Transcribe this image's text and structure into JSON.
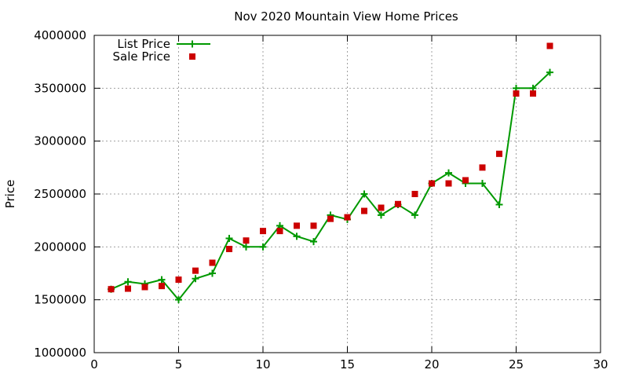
{
  "chart_data": {
    "type": "line",
    "title": "Nov 2020 Mountain View Home Prices",
    "xlabel": "",
    "ylabel": "Price",
    "xlim": [
      0,
      30
    ],
    "ylim": [
      1000000,
      4000000
    ],
    "xticks": [
      0,
      5,
      10,
      15,
      20,
      25,
      30
    ],
    "yticks": [
      1000000,
      1500000,
      2000000,
      2500000,
      3000000,
      3500000,
      4000000
    ],
    "grid": true,
    "legend_position": "top-left",
    "series": [
      {
        "name": "List Price",
        "style": "line+cross",
        "color": "#009900",
        "x": [
          1,
          2,
          3,
          4,
          5,
          6,
          7,
          8,
          9,
          10,
          11,
          12,
          13,
          14,
          15,
          16,
          17,
          18,
          19,
          20,
          21,
          22,
          23,
          24,
          25,
          26,
          27
        ],
        "y": [
          1600000,
          1670000,
          1650000,
          1690000,
          1500000,
          1700000,
          1750000,
          2080000,
          2000000,
          2000000,
          2200000,
          2100000,
          2050000,
          2300000,
          2260000,
          2500000,
          2300000,
          2400000,
          2300000,
          2600000,
          2700000,
          2600000,
          2600000,
          2400000,
          3500000,
          3500000,
          3650000
        ]
      },
      {
        "name": "Sale Price",
        "style": "square",
        "color": "#cc0000",
        "x": [
          1,
          2,
          3,
          4,
          5,
          6,
          7,
          8,
          9,
          10,
          11,
          12,
          13,
          14,
          15,
          16,
          17,
          18,
          19,
          20,
          21,
          22,
          23,
          24,
          25,
          26,
          27
        ],
        "y": [
          1600000,
          1605000,
          1620000,
          1630000,
          1690000,
          1775000,
          1850000,
          1980000,
          2060000,
          2150000,
          2150000,
          2200000,
          2200000,
          2265000,
          2280000,
          2340000,
          2370000,
          2405000,
          2500000,
          2600000,
          2600000,
          2630000,
          2750000,
          2880000,
          3450000,
          3450000,
          3900000
        ]
      }
    ]
  }
}
